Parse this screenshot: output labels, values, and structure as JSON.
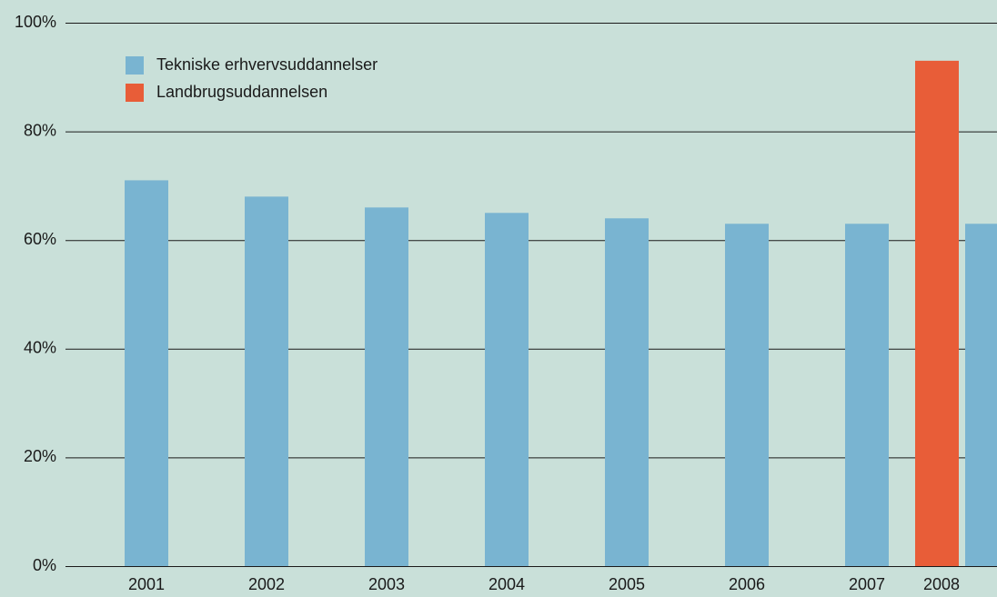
{
  "chart_data": {
    "type": "bar",
    "categories": [
      "2001",
      "2002",
      "2003",
      "2004",
      "2005",
      "2006",
      "2007",
      "2008"
    ],
    "series": [
      {
        "name": "Tekniske erhvervsuddannelser",
        "color": "#79b4d1",
        "values": [
          71,
          68,
          66,
          65,
          64,
          63,
          63,
          63
        ]
      },
      {
        "name": "Landbrugsuddannelsen",
        "color": "#e85d38",
        "values": [
          null,
          null,
          null,
          null,
          null,
          null,
          null,
          93
        ]
      }
    ],
    "ylim": [
      0,
      100
    ],
    "yticks": [
      {
        "value": 0,
        "label": "0%"
      },
      {
        "value": 20,
        "label": "20%"
      },
      {
        "value": 40,
        "label": "40%"
      },
      {
        "value": 60,
        "label": "60%"
      },
      {
        "value": 80,
        "label": "80%"
      },
      {
        "value": 100,
        "label": "100%"
      }
    ],
    "grid": true
  }
}
